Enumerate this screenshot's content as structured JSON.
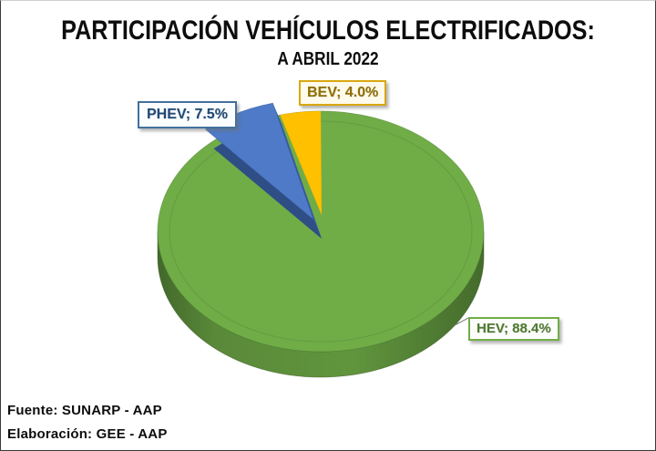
{
  "title": "PARTICIPACIÓN VEHÍCULOS ELECTRIFICADOS:",
  "subtitle": "A ABRIL 2022",
  "footer": {
    "source": "Fuente: SUNARP - AAP",
    "elaboration": "Elaboración: GEE - AAP"
  },
  "chart_data": {
    "type": "pie",
    "style": "3d-pie",
    "title": "PARTICIPACIÓN VEHÍCULOS ELECTRIFICADOS: A ABRIL 2022",
    "unit": "%",
    "start_angle_deg": 0,
    "direction": "clockwise",
    "legend": "none",
    "slices": [
      {
        "name": "HEV",
        "value": 88.4,
        "label": "HEV; 88.4%",
        "color": "#70AD47",
        "text_color": "#4E7A2E",
        "border_color": "#70AD47",
        "bg_color": "#FCFDFB"
      },
      {
        "name": "PHEV",
        "value": 7.5,
        "label": "PHEV; 7.5%",
        "color": "#4472C4",
        "text_color": "#1F4977",
        "border_color": "#41719C",
        "bg_color": "#FAFCFE"
      },
      {
        "name": "BEV",
        "value": 4.0,
        "label": "BEV; 4.0%",
        "color": "#FFC000",
        "text_color": "#8F6F00",
        "border_color": "#D9A70F",
        "bg_color": "#FFFBEC"
      }
    ]
  }
}
